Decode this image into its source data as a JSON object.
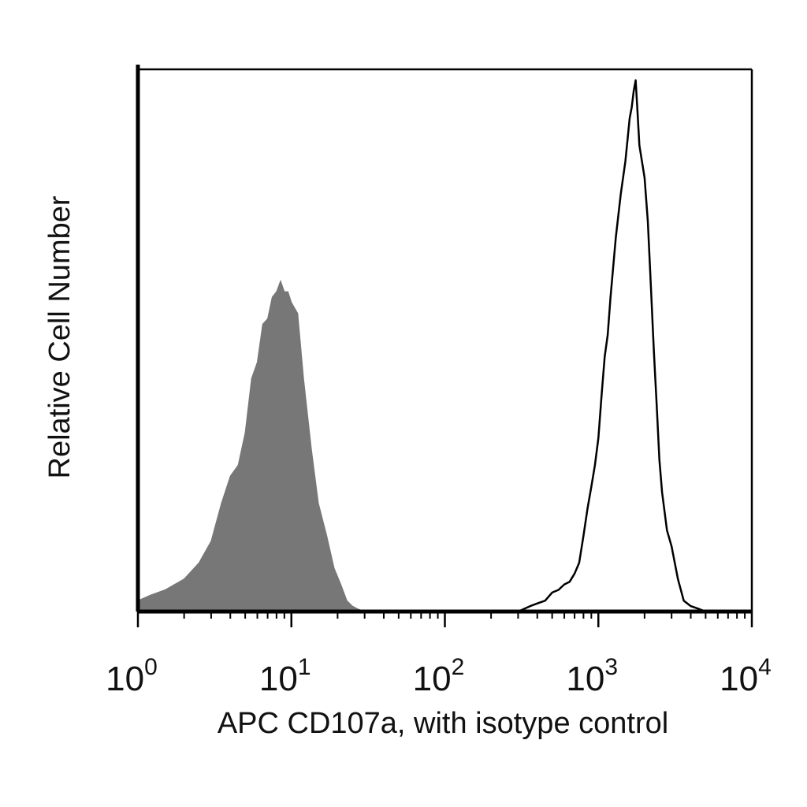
{
  "chart_data": {
    "type": "area",
    "xlabel": "APC CD107a, with isotype control",
    "ylabel": "Relative Cell Number",
    "xscale": "log",
    "xlim": [
      1,
      10000
    ],
    "ylim": [
      0,
      1
    ],
    "grid": false,
    "legend": "none",
    "x_ticks": [
      {
        "value": 1,
        "base": "10",
        "exp": "0"
      },
      {
        "value": 10,
        "base": "10",
        "exp": "1"
      },
      {
        "value": 100,
        "base": "10",
        "exp": "2"
      },
      {
        "value": 1000,
        "base": "10",
        "exp": "3"
      },
      {
        "value": 10000,
        "base": "10",
        "exp": "4"
      }
    ],
    "series": [
      {
        "style": "filled",
        "color": "#777777",
        "x": [
          1.0,
          1.2,
          1.5,
          2.0,
          2.5,
          3.0,
          3.5,
          4.0,
          4.5,
          5.0,
          5.5,
          6.0,
          6.5,
          7.0,
          7.5,
          8.0,
          8.5,
          9.0,
          9.5,
          10.0,
          11.0,
          12.0,
          13.5,
          15.0,
          17.0,
          19.0,
          21.0,
          23.0,
          25.0,
          27.0,
          30.0
        ],
        "y": [
          0.02,
          0.03,
          0.04,
          0.06,
          0.09,
          0.13,
          0.2,
          0.25,
          0.27,
          0.33,
          0.43,
          0.46,
          0.53,
          0.54,
          0.58,
          0.59,
          0.61,
          0.59,
          0.59,
          0.57,
          0.55,
          0.43,
          0.3,
          0.2,
          0.14,
          0.08,
          0.05,
          0.02,
          0.01,
          0.005,
          0.0
        ]
      },
      {
        "style": "line",
        "color": "#000000",
        "x": [
          300,
          360,
          400,
          450,
          500,
          550,
          600,
          650,
          700,
          750,
          800,
          850,
          900,
          950,
          1000,
          1050,
          1100,
          1150,
          1200,
          1300,
          1400,
          1500,
          1600,
          1650,
          1700,
          1750,
          1800,
          1850,
          1900,
          2000,
          2100,
          2200,
          2300,
          2400,
          2500,
          2600,
          2800,
          3000,
          3300,
          3600,
          4000,
          4500,
          5000
        ],
        "y": [
          0.0,
          0.01,
          0.015,
          0.02,
          0.035,
          0.04,
          0.05,
          0.055,
          0.07,
          0.09,
          0.14,
          0.19,
          0.23,
          0.27,
          0.32,
          0.4,
          0.47,
          0.51,
          0.58,
          0.69,
          0.77,
          0.83,
          0.91,
          0.93,
          0.96,
          0.98,
          0.92,
          0.86,
          0.84,
          0.8,
          0.72,
          0.6,
          0.48,
          0.38,
          0.28,
          0.22,
          0.15,
          0.12,
          0.06,
          0.02,
          0.01,
          0.005,
          0.0
        ]
      }
    ]
  }
}
